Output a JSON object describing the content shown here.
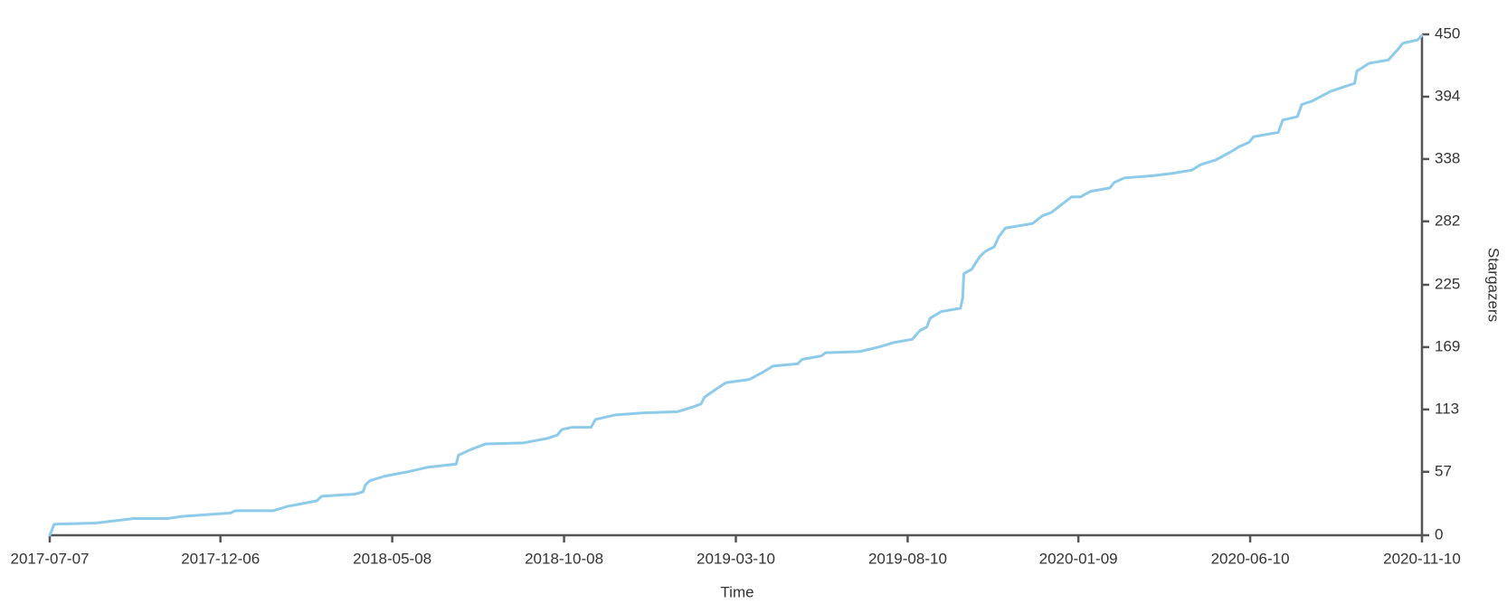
{
  "chart_data": {
    "type": "line",
    "x_label": "Time",
    "y_label": "Stargazers",
    "x": [
      "2017-07-07",
      "2017-07-11",
      "2017-08-17",
      "2017-09-20",
      "2017-10-20",
      "2017-11-02",
      "2017-12-15",
      "2017-12-19",
      "2018-01-22",
      "2018-02-04",
      "2018-03-02",
      "2018-03-06",
      "2018-04-05",
      "2018-04-12",
      "2018-04-14",
      "2018-04-18",
      "2018-05-01",
      "2018-05-22",
      "2018-06-08",
      "2018-07-04",
      "2018-07-06",
      "2018-07-17",
      "2018-07-30",
      "2018-09-02",
      "2018-09-23",
      "2018-10-02",
      "2018-10-06",
      "2018-10-15",
      "2018-11-01",
      "2018-11-05",
      "2018-11-22",
      "2018-12-18",
      "2019-01-17",
      "2019-01-30",
      "2019-02-07",
      "2019-02-10",
      "2019-02-20",
      "2019-03-01",
      "2019-03-22",
      "2019-04-04",
      "2019-04-12",
      "2019-05-04",
      "2019-05-08",
      "2019-05-25",
      "2019-05-29",
      "2019-06-28",
      "2019-07-15",
      "2019-07-28",
      "2019-08-14",
      "2019-08-21",
      "2019-08-27",
      "2019-08-30",
      "2019-09-09",
      "2019-09-26",
      "2019-09-28",
      "2019-09-29",
      "2019-10-06",
      "2019-10-13",
      "2019-10-18",
      "2019-10-26",
      "2019-10-30",
      "2019-11-05",
      "2019-11-29",
      "2019-12-08",
      "2019-12-16",
      "2019-12-25",
      "2020-01-03",
      "2020-01-11",
      "2020-01-20",
      "2020-02-06",
      "2020-02-10",
      "2020-02-19",
      "2020-03-15",
      "2020-04-01",
      "2020-04-19",
      "2020-04-27",
      "2020-05-10",
      "2020-05-23",
      "2020-05-31",
      "2020-06-09",
      "2020-06-13",
      "2020-07-05",
      "2020-07-09",
      "2020-07-22",
      "2020-07-26",
      "2020-08-04",
      "2020-08-21",
      "2020-09-11",
      "2020-09-13",
      "2020-09-24",
      "2020-10-11",
      "2020-10-20",
      "2020-10-24",
      "2020-11-06",
      "2020-11-10"
    ],
    "series": [
      {
        "name": "Stargazers",
        "color": "#8ecbea",
        "values": [
          0,
          10,
          11,
          15,
          15,
          17,
          20,
          22,
          22,
          26,
          31,
          35,
          37,
          39,
          45,
          49,
          53,
          57,
          61,
          64,
          72,
          77,
          82,
          83,
          87,
          90,
          95,
          97,
          97,
          104,
          108,
          110,
          111,
          115,
          118,
          124,
          131,
          137,
          140,
          147,
          152,
          154,
          158,
          161,
          164,
          165,
          169,
          173,
          176,
          184,
          187,
          195,
          201,
          204,
          213,
          235,
          239,
          250,
          255,
          259,
          268,
          276,
          280,
          287,
          290,
          297,
          304,
          304,
          309,
          312,
          317,
          321,
          323,
          325,
          328,
          333,
          337,
          344,
          349,
          353,
          358,
          362,
          373,
          376,
          387,
          390,
          399,
          406,
          417,
          424,
          427,
          437,
          442,
          445,
          449
        ]
      }
    ],
    "xlim": [
      "2017-07-07",
      "2020-11-10"
    ],
    "xticks": [
      "2017-07-07",
      "2017-12-06",
      "2018-05-08",
      "2018-10-08",
      "2019-03-10",
      "2019-08-10",
      "2020-01-09",
      "2020-06-10",
      "2020-11-10"
    ],
    "ylim": [
      0,
      450
    ],
    "yticks": [
      0,
      57,
      113,
      169,
      225,
      282,
      338,
      394,
      450
    ],
    "y_axis_side": "right"
  }
}
